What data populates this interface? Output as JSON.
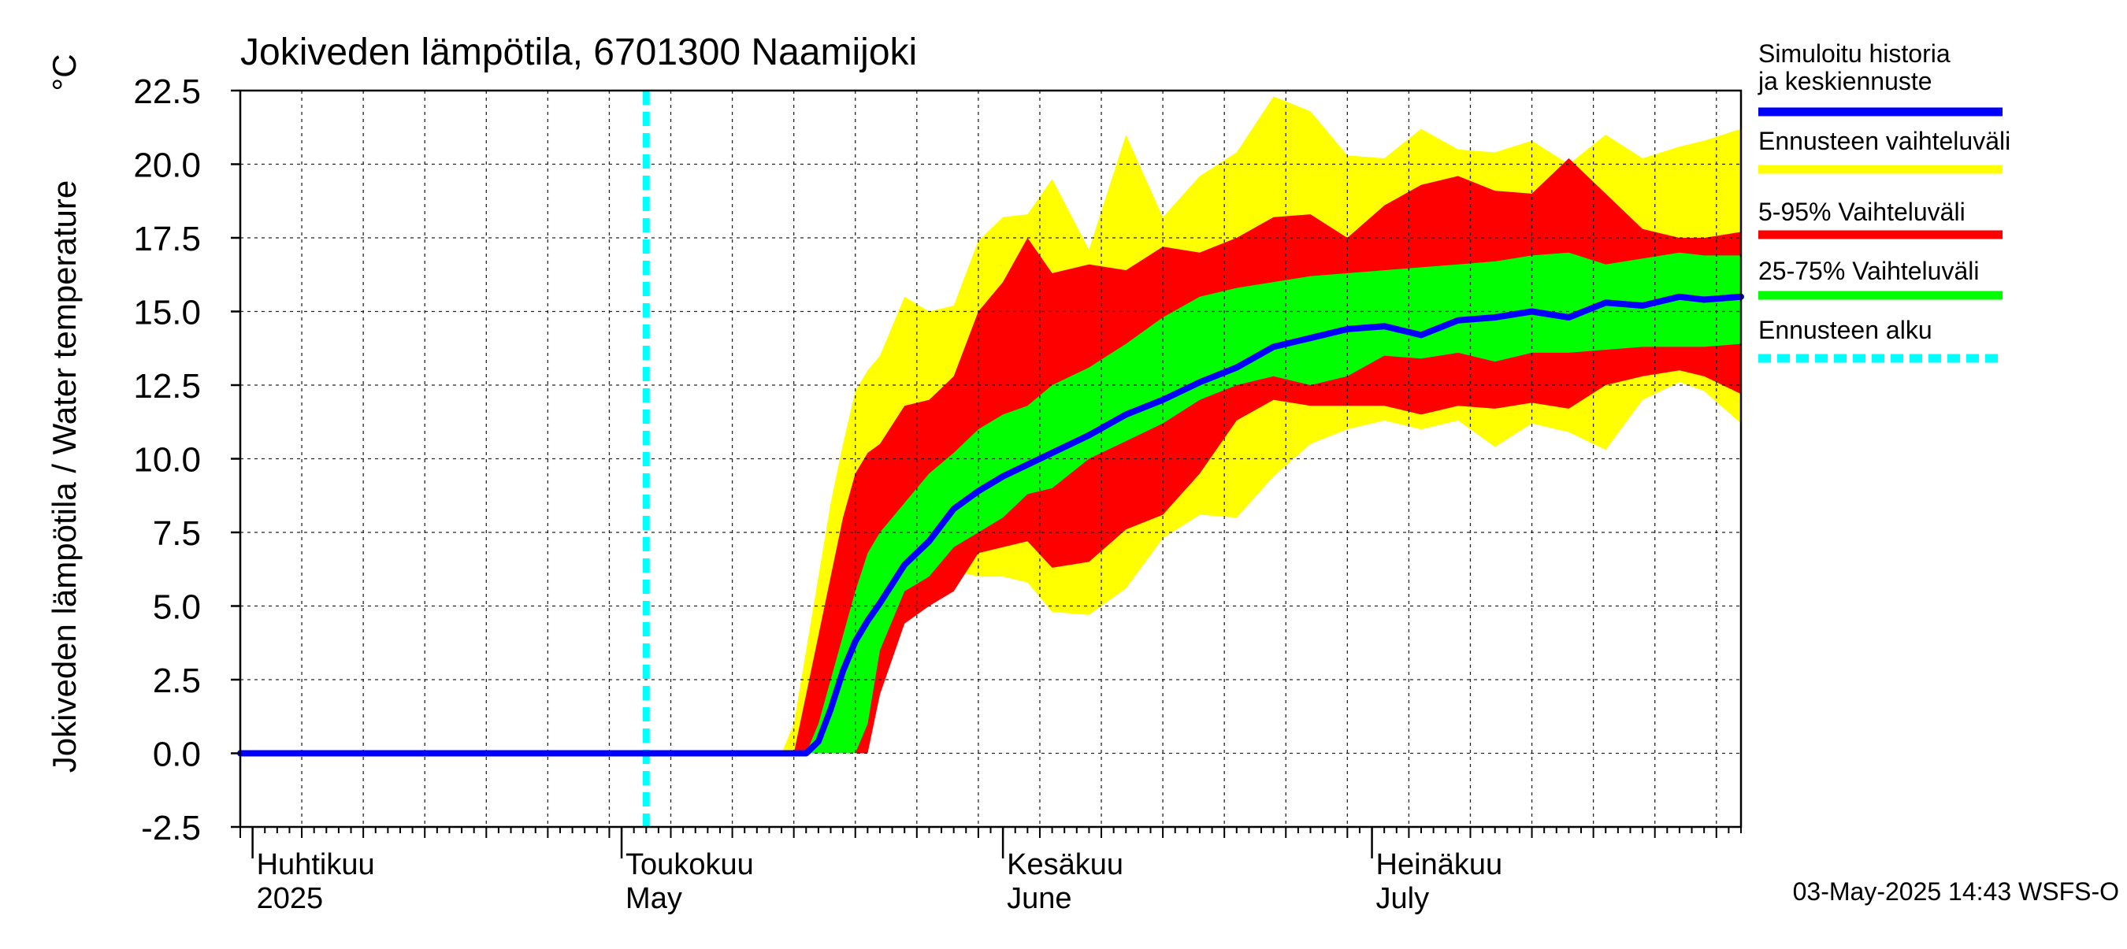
{
  "chart_data": {
    "type": "area",
    "title": "Jokiveden lämpötila, 6701300 Naamijoki",
    "ylabel": "Jokiveden lämpötila / Water temperature",
    "yunit": "°C",
    "ylim": [
      -2.5,
      22.5
    ],
    "yticks": [
      "22.5",
      "20.0",
      "17.5",
      "15.0",
      "12.5",
      "10.0",
      "7.5",
      "5.0",
      "2.5",
      "0.0",
      "-2.5"
    ],
    "xlim": [
      "2025-03-31",
      "2025-07-31"
    ],
    "months": [
      {
        "date": "2025-04-01",
        "fi": "Huhtikuu",
        "en": "2025"
      },
      {
        "date": "2025-05-01",
        "fi": "Toukokuu",
        "en": "May"
      },
      {
        "date": "2025-06-01",
        "fi": "Kesäkuu",
        "en": "June"
      },
      {
        "date": "2025-07-01",
        "fi": "Heinäkuu",
        "en": "July"
      }
    ],
    "grid": true,
    "forecast_start": "2025-05-03",
    "legend": [
      {
        "label": "Simuloitu historia ja keskiennuste",
        "color": "#0000ff",
        "style": "solid"
      },
      {
        "label": "Ennusteen vaihteluväli",
        "color": "#ffff00",
        "style": "solid"
      },
      {
        "label": "5-95% Vaihteluväli",
        "color": "#ff0000",
        "style": "solid"
      },
      {
        "label": "25-75% Vaihteluväli",
        "color": "#00ff00",
        "style": "solid"
      },
      {
        "label": "Ennusteen alku",
        "color": "#00ffff",
        "style": "dashed"
      }
    ],
    "legend_position": "right",
    "footer": "03-May-2025 14:43 WSFS-O",
    "x": [
      "2025-03-31",
      "2025-05-12",
      "2025-05-13",
      "2025-05-14",
      "2025-05-15",
      "2025-05-16",
      "2025-05-17",
      "2025-05-18",
      "2025-05-19",
      "2025-05-20",
      "2025-05-21",
      "2025-05-22",
      "2025-05-24",
      "2025-05-26",
      "2025-05-28",
      "2025-05-30",
      "2025-06-01",
      "2025-06-03",
      "2025-06-05",
      "2025-06-08",
      "2025-06-11",
      "2025-06-14",
      "2025-06-17",
      "2025-06-20",
      "2025-06-23",
      "2025-06-26",
      "2025-06-29",
      "2025-07-02",
      "2025-07-05",
      "2025-07-08",
      "2025-07-11",
      "2025-07-14",
      "2025-07-17",
      "2025-07-20",
      "2025-07-23",
      "2025-07-26",
      "2025-07-28",
      "2025-07-31"
    ],
    "series": [
      {
        "name": "Ennusteen vaihteluväli",
        "role": "band",
        "color": "#ffff00",
        "lower": [
          0,
          0,
          0,
          0,
          0,
          0,
          0,
          0,
          0,
          0,
          0,
          2.5,
          4.8,
          5.6,
          6.2,
          6.0,
          6.0,
          5.8,
          4.8,
          4.7,
          5.6,
          7.3,
          8.1,
          8.0,
          9.4,
          10.5,
          11.0,
          11.3,
          11.0,
          11.3,
          10.4,
          11.2,
          10.9,
          10.3,
          12.0,
          12.6,
          12.3,
          11.2
        ],
        "upper": [
          0,
          0,
          0,
          0,
          1.0,
          3.5,
          6.0,
          8.5,
          10.5,
          12.3,
          13.0,
          13.5,
          15.5,
          15.0,
          15.2,
          17.4,
          18.2,
          18.3,
          19.5,
          17.1,
          21.0,
          18.2,
          19.6,
          20.4,
          22.3,
          21.8,
          20.3,
          20.2,
          21.2,
          20.5,
          20.4,
          20.8,
          20.0,
          21.0,
          20.2,
          20.6,
          20.8,
          21.2
        ]
      },
      {
        "name": "5-95% Vaihteluväli",
        "role": "band",
        "color": "#ff0000",
        "lower": [
          0,
          0,
          0,
          0,
          0,
          0,
          0,
          0,
          0,
          0,
          0,
          2.0,
          4.4,
          5.0,
          5.5,
          6.8,
          7.0,
          7.2,
          6.3,
          6.5,
          7.6,
          8.1,
          9.5,
          11.3,
          12.0,
          11.8,
          11.8,
          11.8,
          11.5,
          11.8,
          11.7,
          11.9,
          11.7,
          12.5,
          12.8,
          13.0,
          12.8,
          12.2
        ],
        "upper": [
          0,
          0,
          0,
          0,
          0,
          2.0,
          4.0,
          6.0,
          8.0,
          9.5,
          10.2,
          10.5,
          11.8,
          12.0,
          12.8,
          15.0,
          16.0,
          17.5,
          16.3,
          16.6,
          16.4,
          17.2,
          17.0,
          17.5,
          18.2,
          18.3,
          17.5,
          18.6,
          19.3,
          19.6,
          19.1,
          19.0,
          20.2,
          19.0,
          17.8,
          17.5,
          17.5,
          17.7
        ]
      },
      {
        "name": "25-75% Vaihteluväli",
        "role": "band",
        "color": "#00ff00",
        "lower": [
          0,
          0,
          0,
          0,
          0,
          0,
          0,
          0,
          0,
          0,
          1.0,
          3.5,
          5.5,
          6.0,
          7.0,
          7.5,
          8.0,
          8.8,
          9.0,
          10.0,
          10.6,
          11.2,
          12.0,
          12.5,
          12.8,
          12.5,
          12.8,
          13.5,
          13.4,
          13.6,
          13.3,
          13.6,
          13.6,
          13.7,
          13.8,
          13.8,
          13.8,
          13.9
        ],
        "upper": [
          0,
          0,
          0,
          0,
          0,
          0,
          1.0,
          2.5,
          4.0,
          5.5,
          6.8,
          7.5,
          8.5,
          9.5,
          10.2,
          11.0,
          11.5,
          11.8,
          12.5,
          13.1,
          13.9,
          14.8,
          15.5,
          15.8,
          16.0,
          16.2,
          16.3,
          16.4,
          16.5,
          16.6,
          16.7,
          16.9,
          17.0,
          16.6,
          16.8,
          17.0,
          16.9,
          16.9
        ]
      },
      {
        "name": "Simuloitu historia ja keskiennuste",
        "role": "line",
        "color": "#0000ff",
        "values": [
          0,
          0,
          0,
          0,
          0,
          0,
          0.4,
          1.5,
          2.8,
          3.8,
          4.5,
          5.1,
          6.4,
          7.2,
          8.3,
          8.9,
          9.4,
          9.8,
          10.2,
          10.8,
          11.5,
          12.0,
          12.6,
          13.1,
          13.8,
          14.1,
          14.4,
          14.5,
          14.2,
          14.7,
          14.8,
          15.0,
          14.8,
          15.3,
          15.2,
          15.5,
          15.4,
          15.5
        ]
      }
    ]
  }
}
